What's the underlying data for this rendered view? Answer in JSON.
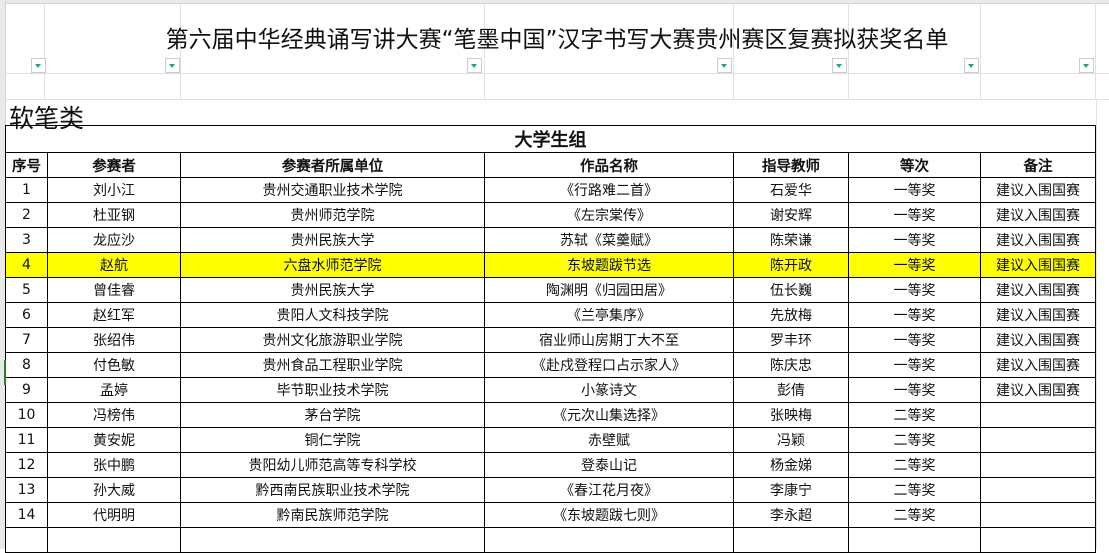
{
  "title": "第六届中华经典诵写讲大赛“笔墨中国”汉字书写大赛贵州赛区复赛拟获奖名单",
  "category": "软笔类",
  "group": "大学生组",
  "columns": [
    "序号",
    "参赛者",
    "参赛者所属单位",
    "作品名称",
    "指导教师",
    "等次",
    "备注"
  ],
  "highlight_color": "#ffff00",
  "filter_icon": "filter-dropdown-icon",
  "rows": [
    [
      "1",
      "刘小江",
      "贵州交通职业技术学院",
      "《行路难二首》",
      "石爱华",
      "一等奖",
      "建议入围国赛"
    ],
    [
      "2",
      "杜亚钢",
      "贵州师范学院",
      "《左宗棠传》",
      "谢安辉",
      "一等奖",
      "建议入围国赛"
    ],
    [
      "3",
      "龙应沙",
      "贵州民族大学",
      "苏轼《菜羹赋》",
      "陈荣谦",
      "一等奖",
      "建议入围国赛"
    ],
    [
      "4",
      "赵航",
      "六盘水师范学院",
      "东坡题跋节选",
      "陈开政",
      "一等奖",
      "建议入围国赛"
    ],
    [
      "5",
      "曾佳睿",
      "贵州民族大学",
      "陶渊明《归园田居》",
      "伍长巍",
      "一等奖",
      "建议入围国赛"
    ],
    [
      "6",
      "赵红军",
      "贵阳人文科技学院",
      "《兰亭集序》",
      "先放梅",
      "一等奖",
      "建议入围国赛"
    ],
    [
      "7",
      "张绍伟",
      "贵州文化旅游职业学院",
      "宿业师山房期丁大不至",
      "罗丰环",
      "一等奖",
      "建议入围国赛"
    ],
    [
      "8",
      "付色敏",
      "贵州食品工程职业学院",
      "《赴戍登程口占示家人》",
      "陈庆忠",
      "一等奖",
      "建议入围国赛"
    ],
    [
      "9",
      "孟婷",
      "毕节职业技术学院",
      "小篆诗文",
      "彭倩",
      "一等奖",
      "建议入围国赛"
    ],
    [
      "10",
      "冯榜伟",
      "茅台学院",
      "《元次山集选择》",
      "张映梅",
      "二等奖",
      ""
    ],
    [
      "11",
      "黄安妮",
      "铜仁学院",
      "赤壁赋",
      "冯颖",
      "二等奖",
      ""
    ],
    [
      "12",
      "张中鹏",
      "贵阳幼儿师范高等专科学校",
      "登泰山记",
      "杨金娣",
      "二等奖",
      ""
    ],
    [
      "13",
      "孙大威",
      "黔西南民族职业技术学院",
      "《春江花月夜》",
      "李康宁",
      "二等奖",
      ""
    ],
    [
      "14",
      "代明明",
      "黔南民族师范学院",
      "《东坡题跋七则》",
      "李永超",
      "二等奖",
      ""
    ]
  ]
}
